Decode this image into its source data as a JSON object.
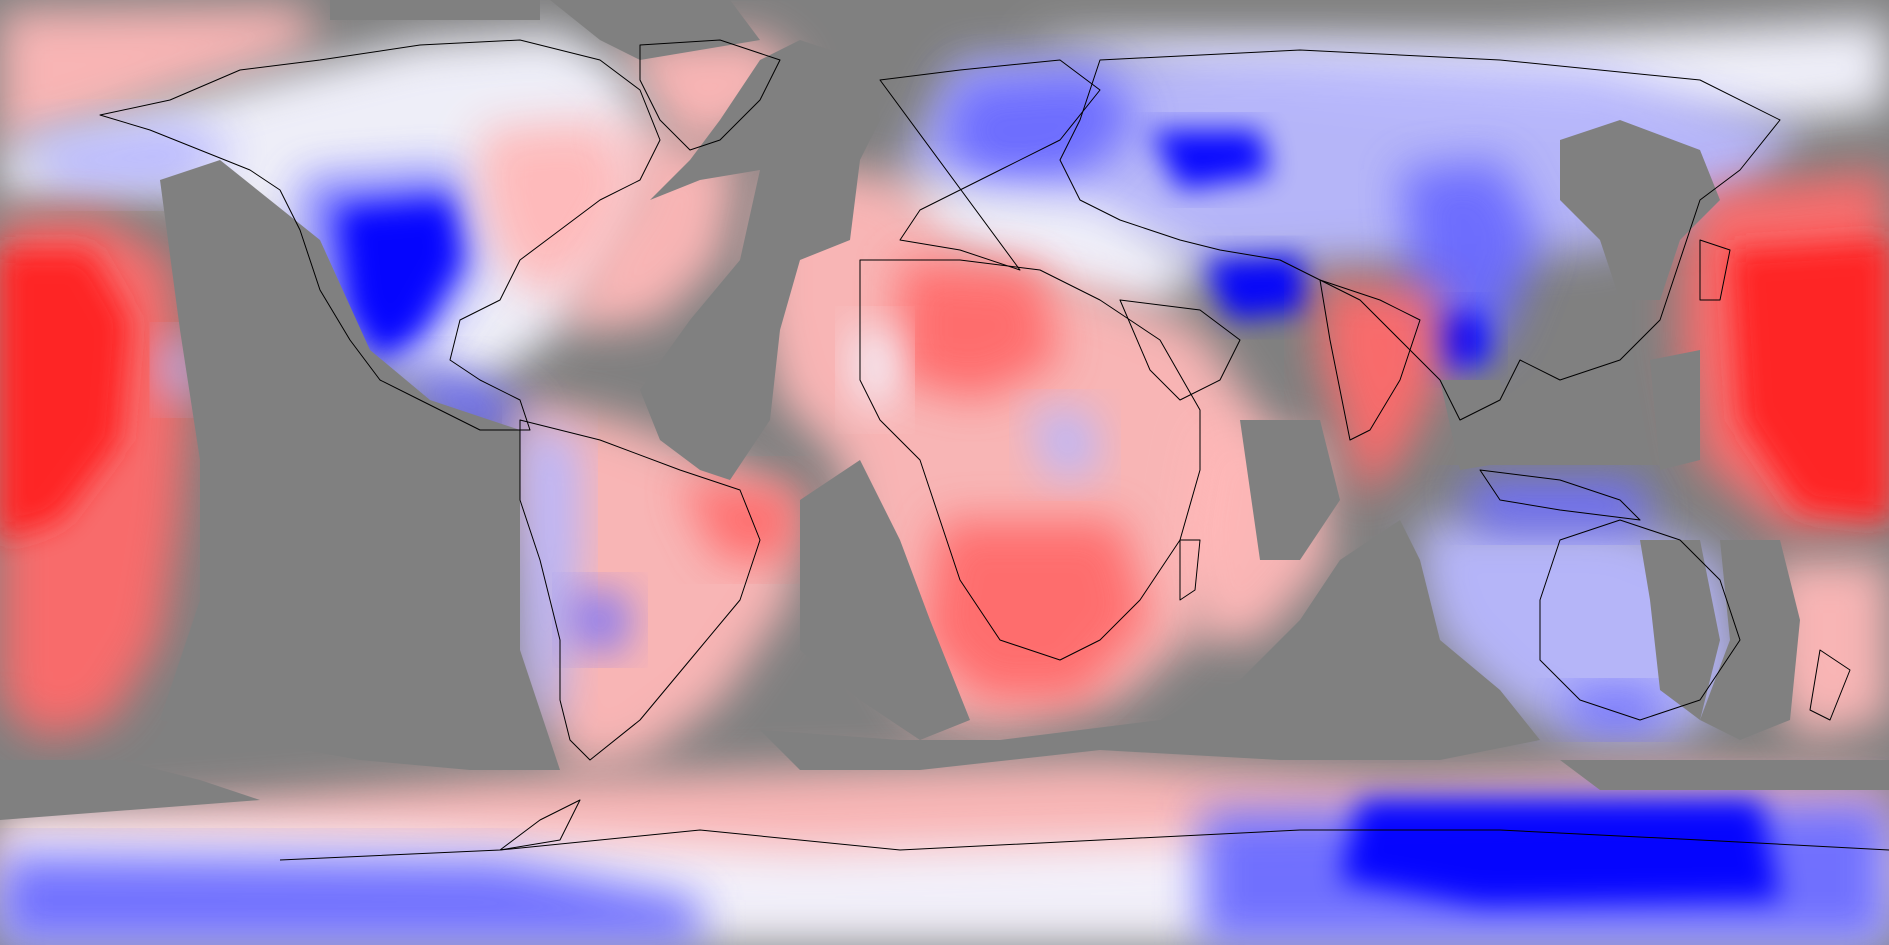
{
  "map": {
    "projection": "equirectangular",
    "background_color": "#808080",
    "palette": {
      "strong_warm": "#ff2020",
      "warm": "#ff6a6a",
      "mild_warm": "#ffb8b8",
      "neutral": "#f4f4ff",
      "mild_cool": "#b8b8ff",
      "cool": "#6a6aff",
      "strong_cool": "#0000ff",
      "coastline": "#000000",
      "no_data": "#808080"
    },
    "legend": "none",
    "labels": "none"
  }
}
